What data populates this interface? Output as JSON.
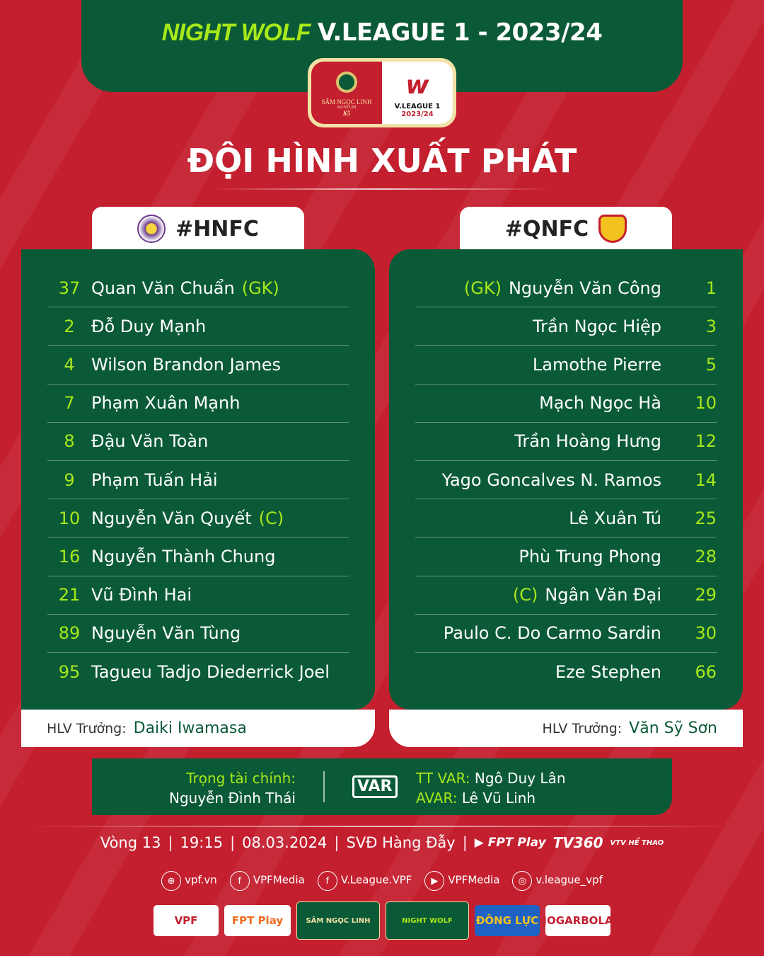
{
  "header": {
    "sponsor": "NIGHT WOLF",
    "title": "V.LEAGUE 1 - 2023/24"
  },
  "badge": {
    "left_text": "SÂM NGỌC LINH",
    "left_sub": "KONTUM",
    "left_k5": "K5",
    "right_text": "V.LEAGUE 1",
    "right_year": "2023/24"
  },
  "main_title": "ĐỘI HÌNH XUẤT PHÁT",
  "home": {
    "tag": "#HNFC",
    "coach_label": "HLV Trưởng:",
    "coach": "Daiki Iwamasa",
    "players": [
      {
        "num": "37",
        "name": "Quan Văn Chuẩn",
        "role": "(GK)"
      },
      {
        "num": "2",
        "name": "Đỗ Duy Mạnh",
        "role": ""
      },
      {
        "num": "4",
        "name": "Wilson Brandon James",
        "role": ""
      },
      {
        "num": "7",
        "name": "Phạm Xuân Mạnh",
        "role": ""
      },
      {
        "num": "8",
        "name": "Đậu Văn Toàn",
        "role": ""
      },
      {
        "num": "9",
        "name": "Phạm Tuấn Hải",
        "role": ""
      },
      {
        "num": "10",
        "name": "Nguyễn Văn Quyết",
        "role": "(C)"
      },
      {
        "num": "16",
        "name": "Nguyễn Thành Chung",
        "role": ""
      },
      {
        "num": "21",
        "name": "Vũ Đình Hai",
        "role": ""
      },
      {
        "num": "89",
        "name": "Nguyễn Văn Tùng",
        "role": ""
      },
      {
        "num": "95",
        "name": "Tagueu Tadjo Diederrick Joel",
        "role": ""
      }
    ]
  },
  "away": {
    "tag": "#QNFC",
    "coach_label": "HLV Trưởng:",
    "coach": "Văn Sỹ Sơn",
    "players": [
      {
        "num": "1",
        "name": "Nguyễn Văn Công",
        "role": "(GK)"
      },
      {
        "num": "3",
        "name": "Trần Ngọc Hiệp",
        "role": ""
      },
      {
        "num": "5",
        "name": "Lamothe Pierre",
        "role": ""
      },
      {
        "num": "10",
        "name": "Mạch Ngọc Hà",
        "role": ""
      },
      {
        "num": "12",
        "name": "Trần Hoàng Hưng",
        "role": ""
      },
      {
        "num": "14",
        "name": "Yago Goncalves N. Ramos",
        "role": ""
      },
      {
        "num": "25",
        "name": "Lê Xuân Tú",
        "role": ""
      },
      {
        "num": "28",
        "name": "Phù Trung Phong",
        "role": ""
      },
      {
        "num": "29",
        "name": "Ngân Văn Đại",
        "role": "(C)"
      },
      {
        "num": "30",
        "name": "Paulo C. Do Carmo Sardin",
        "role": ""
      },
      {
        "num": "66",
        "name": "Eze Stephen",
        "role": ""
      }
    ]
  },
  "referees": {
    "main_label": "Trọng tài chính:",
    "main": "Nguyễn Đình Thái",
    "var_logo": "VAR",
    "var_label": "TT VAR:",
    "var": "Ngô Duy Lân",
    "avar_label": "AVAR:",
    "avar": "Lê Vũ Linh"
  },
  "match": {
    "round": "Vòng 13",
    "time": "19:15",
    "date": "08.03.2024",
    "venue": "SVĐ Hàng Đẫy",
    "broadcasters": [
      "FPT Play",
      "TV360",
      "VTV HỂ THAO"
    ]
  },
  "social": [
    {
      "icon": "globe-icon",
      "label": "vpf.vn"
    },
    {
      "icon": "facebook-icon",
      "label": "VPFMedia"
    },
    {
      "icon": "facebook-icon",
      "label": "V.League.VPF"
    },
    {
      "icon": "youtube-icon",
      "label": "VPFMedia"
    },
    {
      "icon": "instagram-icon",
      "label": "v.league_vpf"
    }
  ],
  "sponsors": [
    "VPF",
    "FPT Play",
    "SÂM NGỌC LINH",
    "NIGHT WOLF",
    "ĐÔNG LỰC",
    "JOGARBOLA"
  ],
  "colors": {
    "background": "#c41f2e",
    "green": "#0b5a37",
    "lime": "#a8e81a"
  }
}
